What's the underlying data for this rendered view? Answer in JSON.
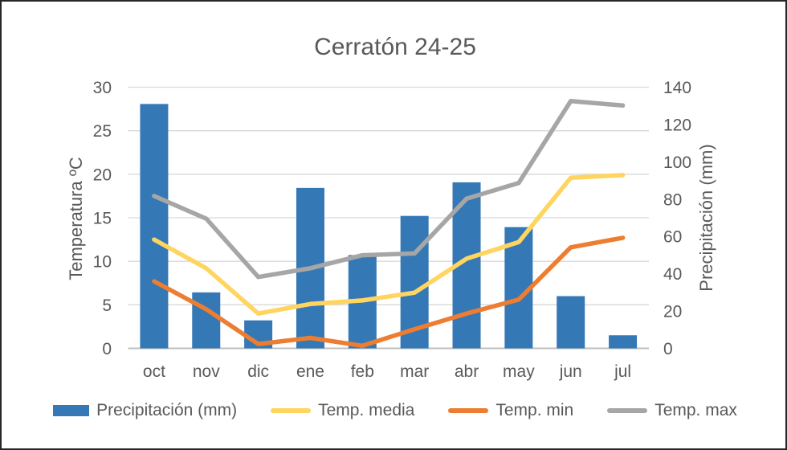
{
  "chart_data": {
    "type": "combo-bar-line",
    "title": "Cerratón 24-25",
    "categories": [
      "oct",
      "nov",
      "dic",
      "ene",
      "feb",
      "mar",
      "abr",
      "may",
      "jun",
      "jul"
    ],
    "series": [
      {
        "name": "Precipitación (mm)",
        "type": "bar",
        "axis": "right",
        "color": "#3478B6",
        "values": [
          131,
          30,
          15,
          86,
          50,
          71,
          89,
          65,
          28,
          7
        ]
      },
      {
        "name": "Temp. media",
        "type": "line",
        "axis": "left",
        "color": "#FFD55F",
        "values": [
          12.5,
          9.2,
          4.0,
          5.1,
          5.5,
          6.4,
          10.3,
          12.2,
          19.6,
          19.9
        ]
      },
      {
        "name": "Temp. min",
        "type": "line",
        "axis": "left",
        "color": "#ED7D31",
        "values": [
          7.7,
          4.5,
          0.5,
          1.2,
          0.3,
          2.2,
          4.0,
          5.6,
          11.6,
          12.7
        ]
      },
      {
        "name": "Temp. max",
        "type": "line",
        "axis": "left",
        "color": "#A6A6A6",
        "values": [
          17.5,
          14.9,
          8.2,
          9.2,
          10.7,
          10.9,
          17.2,
          19.0,
          28.4,
          27.9
        ]
      }
    ],
    "left_axis": {
      "label": "Temperatura ºC",
      "min": 0,
      "max": 30,
      "step": 5,
      "ticks": [
        0,
        5,
        10,
        15,
        20,
        25,
        30
      ]
    },
    "right_axis": {
      "label": "Precipitación (mm)",
      "min": 0,
      "max": 140,
      "step": 20,
      "ticks": [
        0,
        20,
        40,
        60,
        80,
        100,
        120,
        140
      ]
    },
    "grid": true,
    "legend_position": "bottom",
    "colors": {
      "gridline": "#D9D9D9",
      "axis_line": "#BFBFBF",
      "text": "#595959"
    }
  }
}
